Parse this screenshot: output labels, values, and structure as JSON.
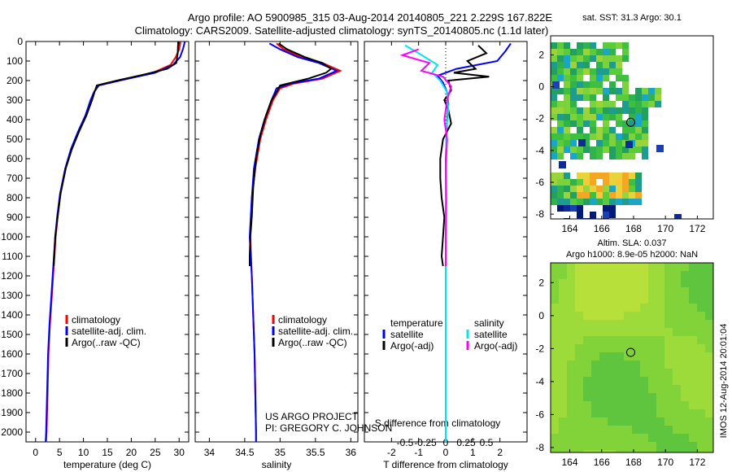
{
  "header": {
    "line1": "Argo profile: AO 5900985_315 03-Aug-2014 20140805_221 2.229S 167.822E",
    "line2": "Climatology: CARS2009. Satellite-adjusted climatology: synTS_20140805.nc (1.1d later)"
  },
  "credits": {
    "line1": "US ARGO PROJECT",
    "line2": "PI: GREGORY C. JOHNSON",
    "side": "IMOS 12-Aug-2014 20:01:04"
  },
  "colors": {
    "clim": "#ff0000",
    "sat": "#0000ff",
    "argo": "#000000",
    "sal_sat": "#00e5ee",
    "sal_argo": "#ff00ff"
  },
  "chart_data": [
    {
      "type": "line",
      "xlabel": "temperature (deg C)",
      "ylabel": "",
      "xlim": [
        -2,
        32
      ],
      "ylim": [
        2050,
        0
      ],
      "xticks": [
        0,
        5,
        10,
        15,
        20,
        25,
        30
      ],
      "yticks": [
        0,
        100,
        200,
        300,
        400,
        500,
        600,
        700,
        800,
        900,
        1000,
        1100,
        1200,
        1300,
        1400,
        1500,
        1600,
        1700,
        1800,
        1900,
        2000
      ],
      "legend": [
        "climatology",
        "satellite-adj. clim.",
        "Argo(..raw -QC)"
      ],
      "series": [
        {
          "name": "climatology",
          "color": "#ff0000",
          "points": [
            [
              30.3,
              0
            ],
            [
              30.0,
              40
            ],
            [
              29.3,
              80
            ],
            [
              28.2,
              120
            ],
            [
              24.5,
              160
            ],
            [
              18,
              195
            ],
            [
              13,
              225
            ],
            [
              12.2,
              260
            ],
            [
              11.5,
              300
            ],
            [
              10.5,
              380
            ],
            [
              9,
              460
            ],
            [
              7.5,
              550
            ],
            [
              6.3,
              650
            ],
            [
              5.2,
              780
            ],
            [
              4.6,
              900
            ],
            [
              4.2,
              1000
            ],
            [
              3.8,
              1150
            ],
            [
              3.4,
              1300
            ],
            [
              3.0,
              1450
            ],
            [
              2.7,
              1600
            ],
            [
              2.5,
              1800
            ],
            [
              2.3,
              2000
            ],
            [
              2.2,
              2050
            ]
          ]
        },
        {
          "name": "satellite-adj. clim.",
          "color": "#0000ff",
          "points": [
            [
              31.2,
              0
            ],
            [
              30.8,
              40
            ],
            [
              30.2,
              80
            ],
            [
              28.7,
              120
            ],
            [
              25,
              160
            ],
            [
              18.5,
              195
            ],
            [
              13.2,
              225
            ],
            [
              12.2,
              260
            ],
            [
              11.5,
              300
            ],
            [
              10.4,
              380
            ],
            [
              8.9,
              460
            ],
            [
              7.4,
              550
            ],
            [
              6.2,
              650
            ],
            [
              5.1,
              780
            ],
            [
              4.5,
              900
            ],
            [
              4.1,
              1000
            ],
            [
              3.7,
              1150
            ],
            [
              3.3,
              1300
            ],
            [
              2.9,
              1450
            ],
            [
              2.6,
              1600
            ],
            [
              2.4,
              1800
            ],
            [
              2.2,
              2000
            ],
            [
              2.1,
              2050
            ]
          ]
        },
        {
          "name": "Argo(..raw -QC)",
          "color": "#000000",
          "points": [
            [
              29.8,
              0
            ],
            [
              29.7,
              60
            ],
            [
              29.4,
              110
            ],
            [
              27.5,
              140
            ],
            [
              22.5,
              170
            ],
            [
              17,
              200
            ],
            [
              12.8,
              225
            ],
            [
              12.3,
              260
            ],
            [
              11.8,
              300
            ],
            [
              10.6,
              380
            ],
            [
              9.1,
              460
            ],
            [
              7.6,
              550
            ],
            [
              6.3,
              650
            ],
            [
              5.2,
              780
            ],
            [
              4.6,
              900
            ],
            [
              4.1,
              1000
            ],
            [
              3.8,
              1150
            ]
          ]
        }
      ]
    },
    {
      "type": "line",
      "xlabel": "salinity",
      "ylabel": "",
      "xlim": [
        33.8,
        36.1
      ],
      "ylim": [
        2050,
        0
      ],
      "xticks": [
        34,
        34.5,
        35,
        35.5,
        36
      ],
      "legend": [
        "climatology",
        "satellite-adj. clim.",
        "Argo(..raw -QC)"
      ],
      "series": [
        {
          "name": "climatology",
          "color": "#ff0000",
          "points": [
            [
              34.95,
              10
            ],
            [
              35.05,
              40
            ],
            [
              35.3,
              80
            ],
            [
              35.6,
              110
            ],
            [
              35.85,
              150
            ],
            [
              35.6,
              190
            ],
            [
              35.2,
              215
            ],
            [
              35.0,
              240
            ],
            [
              34.9,
              300
            ],
            [
              34.8,
              400
            ],
            [
              34.72,
              500
            ],
            [
              34.65,
              650
            ],
            [
              34.6,
              800
            ],
            [
              34.58,
              1000
            ],
            [
              34.6,
              1200
            ],
            [
              34.62,
              1400
            ],
            [
              34.64,
              1600
            ],
            [
              34.65,
              1800
            ],
            [
              34.66,
              2000
            ],
            [
              34.66,
              2050
            ]
          ]
        },
        {
          "name": "satellite-adj. clim.",
          "color": "#0000ff",
          "points": [
            [
              34.85,
              10
            ],
            [
              35.0,
              40
            ],
            [
              35.25,
              80
            ],
            [
              35.55,
              110
            ],
            [
              35.8,
              150
            ],
            [
              35.55,
              190
            ],
            [
              35.15,
              215
            ],
            [
              34.95,
              240
            ],
            [
              34.88,
              300
            ],
            [
              34.78,
              400
            ],
            [
              34.7,
              500
            ],
            [
              34.63,
              650
            ],
            [
              34.6,
              800
            ],
            [
              34.57,
              1000
            ],
            [
              34.6,
              1200
            ],
            [
              34.62,
              1400
            ],
            [
              34.64,
              1600
            ],
            [
              34.65,
              1800
            ],
            [
              34.66,
              2000
            ],
            [
              34.66,
              2050
            ]
          ]
        },
        {
          "name": "Argo(..raw -QC)",
          "color": "#000000",
          "points": [
            [
              34.98,
              10
            ],
            [
              35.1,
              40
            ],
            [
              35.35,
              80
            ],
            [
              35.6,
              110
            ],
            [
              35.72,
              140
            ],
            [
              35.65,
              160
            ],
            [
              35.4,
              190
            ],
            [
              35.0,
              225
            ],
            [
              34.95,
              260
            ],
            [
              34.88,
              300
            ],
            [
              34.8,
              380
            ],
            [
              34.72,
              480
            ],
            [
              34.66,
              600
            ],
            [
              34.62,
              750
            ],
            [
              34.6,
              900
            ],
            [
              34.58,
              1000
            ],
            [
              34.57,
              1100
            ],
            [
              34.57,
              1150
            ]
          ]
        }
      ]
    },
    {
      "type": "line",
      "xlabel": "T difference from climatology",
      "title_top": "S difference from climatology",
      "xlim": [
        -3,
        3
      ],
      "ylim": [
        2050,
        0
      ],
      "xticks": [
        -2,
        -1,
        0,
        1,
        2
      ],
      "xticklabels_top": [
        "-0.5",
        "-0.25",
        "0",
        "0.25",
        "0.5"
      ],
      "legend_headers": [
        "temperature",
        "salinity"
      ],
      "legend": [
        "satellite",
        "Argo(-adj)",
        "satellite",
        "Argo(-adj)"
      ],
      "series": [
        {
          "name": "temperature satellite",
          "color": "#0000ff",
          "points": [
            [
              2.4,
              10
            ],
            [
              2.2,
              50
            ],
            [
              1.9,
              100
            ],
            [
              0.4,
              140
            ],
            [
              -0.3,
              175
            ],
            [
              -0.1,
              210
            ],
            [
              0.05,
              260
            ],
            [
              0.1,
              320
            ],
            [
              0.05,
              400
            ],
            [
              0,
              600
            ],
            [
              0,
              1000
            ],
            [
              0,
              1500
            ],
            [
              0,
              2050
            ]
          ]
        },
        {
          "name": "temperature Argo(-adj)",
          "color": "#000000",
          "points": [
            [
              1.2,
              20
            ],
            [
              1.5,
              60
            ],
            [
              0.8,
              100
            ],
            [
              1.1,
              140
            ],
            [
              0.3,
              160
            ],
            [
              1.6,
              180
            ],
            [
              0.1,
              200
            ],
            [
              0.2,
              250
            ],
            [
              -0.05,
              300
            ],
            [
              0.1,
              350
            ],
            [
              0.2,
              420
            ],
            [
              -0.1,
              500
            ],
            [
              -0.2,
              600
            ],
            [
              -0.2,
              700
            ],
            [
              -0.15,
              800
            ],
            [
              -0.05,
              900
            ],
            [
              -0.1,
              1000
            ],
            [
              -0.15,
              1100
            ],
            [
              -0.1,
              1150
            ]
          ]
        },
        {
          "name": "salinity satellite",
          "color": "#00e5ee",
          "points": [
            [
              -1.5,
              20
            ],
            [
              -1.0,
              60
            ],
            [
              -0.3,
              120
            ],
            [
              -0.5,
              160
            ],
            [
              -0.2,
              200
            ],
            [
              0.05,
              260
            ],
            [
              0.1,
              350
            ],
            [
              0.02,
              450
            ],
            [
              0,
              700
            ],
            [
              0,
              1000
            ],
            [
              0,
              1500
            ],
            [
              0,
              2050
            ]
          ]
        },
        {
          "name": "salinity Argo(-adj)",
          "color": "#ff00ff",
          "points": [
            [
              -1.0,
              40
            ],
            [
              -1.6,
              70
            ],
            [
              -0.6,
              110
            ],
            [
              -0.9,
              150
            ],
            [
              -0.1,
              180
            ],
            [
              0.2,
              230
            ],
            [
              0.05,
              300
            ],
            [
              -0.05,
              400
            ],
            [
              0.05,
              500
            ],
            [
              0,
              650
            ],
            [
              0.02,
              800
            ],
            [
              0,
              1000
            ],
            [
              0,
              1150
            ]
          ]
        }
      ]
    },
    {
      "type": "heatmap",
      "title": "sat. SST: 31.3 Argo: 30.1",
      "xlim": [
        162.8,
        173.0
      ],
      "ylim": [
        -8.3,
        3.2
      ],
      "xticks": [
        164,
        166,
        168,
        170,
        172
      ],
      "yticks": [
        -8,
        -6,
        -4,
        -2,
        0,
        2
      ],
      "marker": [
        167.822,
        -2.229
      ]
    },
    {
      "type": "heatmap",
      "title": "Altim. SLA: 0.037",
      "subtitle": "Argo h1000: 8.9e-05 h2000: NaN",
      "xlim": [
        162.8,
        173.0
      ],
      "ylim": [
        -8.3,
        3.2
      ],
      "xticks": [
        164,
        166,
        168,
        170,
        172
      ],
      "yticks": [
        -8,
        -6,
        -4,
        -2,
        0,
        2
      ],
      "marker": [
        167.822,
        -2.229
      ]
    }
  ]
}
